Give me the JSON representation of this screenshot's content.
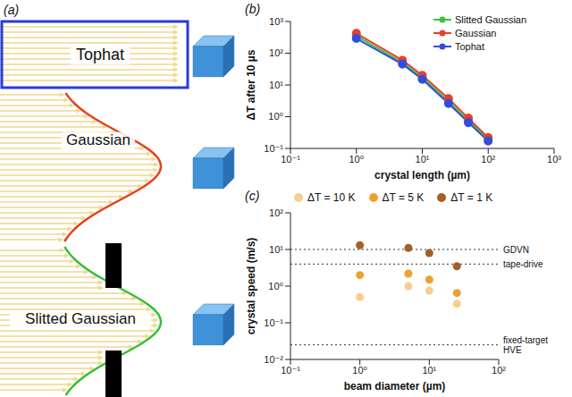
{
  "diagram": {
    "label": "(a)",
    "profiles": [
      {
        "label": "Tophat",
        "color": "#2a3bd6"
      },
      {
        "label": "Gaussian",
        "color": "#e2401f"
      },
      {
        "label": "Slitted Gaussian",
        "color": "#35bf35"
      }
    ]
  },
  "chart_data": [
    {
      "title": "(b)",
      "type": "line",
      "x_label": "crystal length (µm)",
      "y_label": "ΔT after 10 µs",
      "log": true,
      "marker": "circle",
      "legend": "top-right",
      "x": [
        1,
        5,
        10,
        25,
        50,
        100
      ],
      "series": [
        {
          "name": "Slitted Gaussian",
          "color": "#3cc43c",
          "values": [
            350,
            50,
            17,
            3.0,
            0.75,
            0.2
          ]
        },
        {
          "name": "Gaussian",
          "color": "#e8412b",
          "values": [
            420,
            60,
            20,
            3.7,
            0.9,
            0.22
          ]
        },
        {
          "name": "Tophat",
          "color": "#2f4fe0",
          "values": [
            290,
            45,
            15,
            2.6,
            0.65,
            0.17
          ]
        }
      ],
      "xlim": [
        0.1,
        1000
      ],
      "ylim": [
        0.1,
        1000
      ],
      "xticks": [
        {
          "value": 0.1,
          "label": "10⁻¹"
        },
        {
          "value": 1,
          "label": "10⁰"
        },
        {
          "value": 10,
          "label": "10¹"
        },
        {
          "value": 100,
          "label": "10²"
        },
        {
          "value": 1000,
          "label": "10³"
        }
      ],
      "yticks": [
        {
          "value": 0.1,
          "label": "10⁻¹"
        },
        {
          "value": 1,
          "label": "10⁰"
        },
        {
          "value": 10,
          "label": "10¹"
        },
        {
          "value": 100,
          "label": "10²"
        },
        {
          "value": 1000,
          "label": "10³"
        }
      ]
    },
    {
      "title": "(c)",
      "type": "scatter",
      "x_label": "beam diameter (µm)",
      "y_label": "crystal speed (m/s)",
      "log": true,
      "marker": "circle",
      "legend": "top",
      "x": [
        1,
        5,
        10,
        25
      ],
      "series": [
        {
          "name": "ΔT = 10 K",
          "color": "#f5cf8e",
          "values": [
            0.5,
            1.0,
            0.75,
            0.33
          ]
        },
        {
          "name": "ΔT = 5 K",
          "color": "#f0a030",
          "values": [
            2.0,
            2.2,
            1.5,
            0.65
          ]
        },
        {
          "name": "ΔT = 1 K",
          "color": "#a0622a",
          "values": [
            13,
            11,
            8,
            3.5
          ]
        }
      ],
      "reference_lines": [
        {
          "value": 10,
          "label": "GDVN",
          "line_style": "dotted"
        },
        {
          "value": 4,
          "label": "tape-drive",
          "line_style": "dotted"
        },
        {
          "value": 0.025,
          "label": "fixed-target HVE",
          "line_style": "dotted"
        }
      ],
      "xlim": [
        0.1,
        100
      ],
      "ylim": [
        0.01,
        100
      ],
      "xticks": [
        {
          "value": 0.1,
          "label": "10⁻¹"
        },
        {
          "value": 1,
          "label": "10⁰"
        },
        {
          "value": 10,
          "label": "10¹"
        },
        {
          "value": 100,
          "label": "10²"
        }
      ],
      "yticks": [
        {
          "value": 0.01,
          "label": "10⁻²"
        },
        {
          "value": 0.1,
          "label": "10⁻¹"
        },
        {
          "value": 1,
          "label": "10⁰"
        },
        {
          "value": 10,
          "label": "10¹"
        },
        {
          "value": 100,
          "label": "10²"
        }
      ]
    }
  ]
}
